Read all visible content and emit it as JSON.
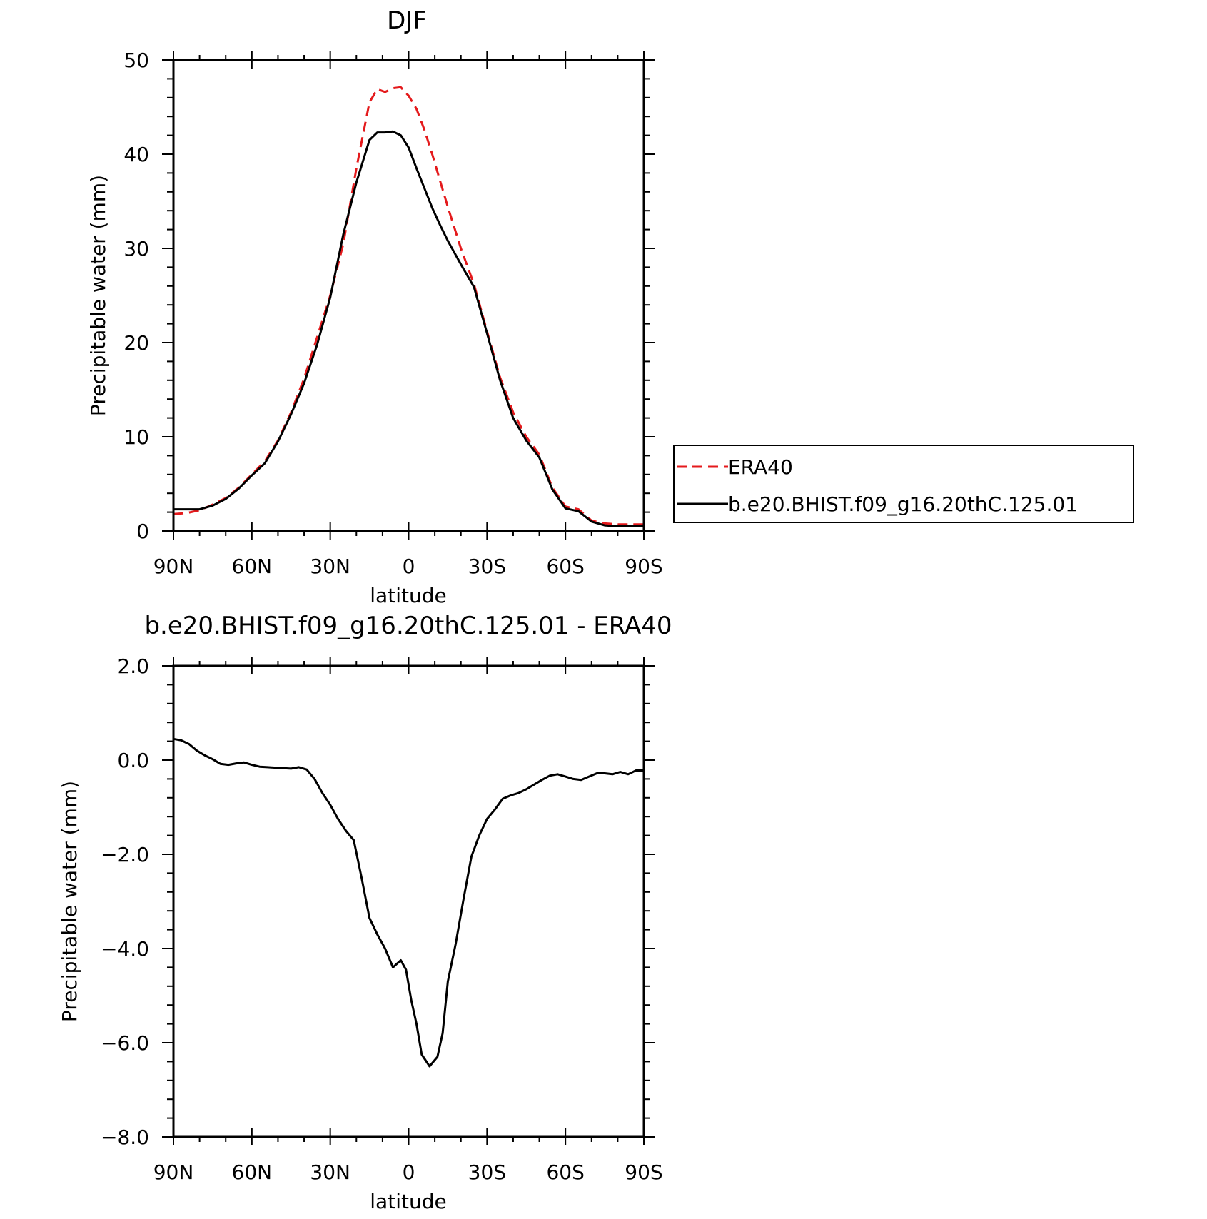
{
  "chart_data": [
    {
      "type": "line",
      "title": "DJF",
      "xlabel": "latitude",
      "ylabel": "Precipitable water (mm)",
      "xlim": [
        90,
        -90
      ],
      "ylim": [
        0,
        50
      ],
      "x_ticks": [
        90,
        60,
        30,
        0,
        -30,
        -60,
        -90
      ],
      "x_tick_labels": [
        "90N",
        "60N",
        "30N",
        "0",
        "30S",
        "60S",
        "90S"
      ],
      "y_ticks": [
        0,
        10,
        20,
        30,
        40,
        50
      ],
      "y_tick_labels": [
        "0",
        "10",
        "20",
        "30",
        "40",
        "50"
      ],
      "grid": false,
      "legend": {
        "position": "right",
        "entries": [
          "ERA40",
          "b.e20.BHIST.f09_g16.20thC.125.01"
        ]
      },
      "series": [
        {
          "name": "ERA40",
          "color": "#e41a1c",
          "style": "dashed",
          "x": [
            90,
            85,
            80,
            75,
            70,
            65,
            60,
            55,
            50,
            45,
            40,
            35,
            30,
            25,
            20,
            15,
            12,
            9,
            6,
            3,
            0,
            -3,
            -6,
            -9,
            -12,
            -15,
            -20,
            -25,
            -30,
            -35,
            -40,
            -45,
            -50,
            -55,
            -60,
            -65,
            -70,
            -75,
            -80,
            -85,
            -90
          ],
          "values": [
            1.8,
            1.9,
            2.2,
            2.8,
            3.5,
            4.6,
            6.0,
            7.4,
            9.6,
            12.6,
            16.2,
            20.6,
            25.0,
            30.5,
            38.5,
            45.5,
            46.9,
            46.6,
            47.0,
            47.1,
            46.2,
            44.8,
            42.6,
            40.0,
            37.2,
            34.4,
            30.0,
            26.2,
            21.2,
            16.3,
            12.6,
            10.0,
            8.1,
            4.6,
            2.6,
            2.3,
            1.1,
            0.8,
            0.7,
            0.7,
            0.7
          ]
        },
        {
          "name": "b.e20.BHIST.f09_g16.20thC.125.01",
          "color": "#000000",
          "style": "solid",
          "x": [
            90,
            85,
            80,
            75,
            70,
            65,
            60,
            55,
            50,
            45,
            40,
            35,
            30,
            25,
            20,
            15,
            12,
            9,
            6,
            3,
            0,
            -3,
            -6,
            -9,
            -12,
            -15,
            -20,
            -25,
            -30,
            -35,
            -40,
            -45,
            -50,
            -55,
            -60,
            -65,
            -70,
            -75,
            -80,
            -85,
            -90
          ],
          "values": [
            2.3,
            2.3,
            2.3,
            2.7,
            3.4,
            4.5,
            5.9,
            7.2,
            9.5,
            12.4,
            15.7,
            19.8,
            24.8,
            31.5,
            37.0,
            41.5,
            42.3,
            42.3,
            42.4,
            42.0,
            40.7,
            38.5,
            36.4,
            34.3,
            32.5,
            30.8,
            28.3,
            25.9,
            21.0,
            16.0,
            12.0,
            9.6,
            7.8,
            4.4,
            2.4,
            2.1,
            1.0,
            0.6,
            0.5,
            0.5,
            0.5
          ]
        }
      ]
    },
    {
      "type": "line",
      "title": "b.e20.BHIST.f09_g16.20thC.125.01 - ERA40",
      "xlabel": "latitude",
      "ylabel": "Precipitable water (mm)",
      "xlim": [
        90,
        -90
      ],
      "ylim": [
        -8.0,
        2.0
      ],
      "x_ticks": [
        90,
        60,
        30,
        0,
        -30,
        -60,
        -90
      ],
      "x_tick_labels": [
        "90N",
        "60N",
        "30N",
        "0",
        "30S",
        "60S",
        "90S"
      ],
      "y_ticks": [
        -8,
        -6,
        -4,
        -2,
        0,
        2
      ],
      "y_tick_labels": [
        "-8.0",
        "-6.0",
        "-4.0",
        "-2.0",
        "0.0",
        "2.0"
      ],
      "grid": false,
      "series": [
        {
          "color": "#000000",
          "style": "solid",
          "x": [
            90,
            87,
            84,
            81,
            78,
            75,
            72,
            69,
            66,
            63,
            60,
            57,
            54,
            51,
            48,
            45,
            42,
            39,
            36,
            33,
            30,
            27,
            24,
            21,
            18,
            15,
            12,
            9,
            6,
            3,
            1,
            -1,
            -3,
            -5,
            -8,
            -11,
            -13,
            -15,
            -18,
            -21,
            -24,
            -27,
            -30,
            -33,
            -36,
            -39,
            -42,
            -45,
            -48,
            -51,
            -54,
            -57,
            -60,
            -63,
            -66,
            -69,
            -72,
            -75,
            -78,
            -81,
            -84,
            -87,
            -90
          ],
          "values": [
            0.45,
            0.42,
            0.34,
            0.2,
            0.1,
            0.02,
            -0.08,
            -0.1,
            -0.07,
            -0.05,
            -0.1,
            -0.14,
            -0.15,
            -0.16,
            -0.17,
            -0.18,
            -0.15,
            -0.2,
            -0.4,
            -0.7,
            -0.95,
            -1.25,
            -1.5,
            -1.7,
            -2.5,
            -3.35,
            -3.7,
            -4.0,
            -4.4,
            -4.25,
            -4.45,
            -5.1,
            -5.6,
            -6.25,
            -6.5,
            -6.3,
            -5.8,
            -4.7,
            -3.9,
            -2.95,
            -2.05,
            -1.6,
            -1.25,
            -1.05,
            -0.82,
            -0.75,
            -0.7,
            -0.62,
            -0.52,
            -0.42,
            -0.33,
            -0.3,
            -0.35,
            -0.4,
            -0.42,
            -0.35,
            -0.28,
            -0.28,
            -0.3,
            -0.25,
            -0.3,
            -0.22,
            -0.22
          ]
        }
      ]
    }
  ]
}
